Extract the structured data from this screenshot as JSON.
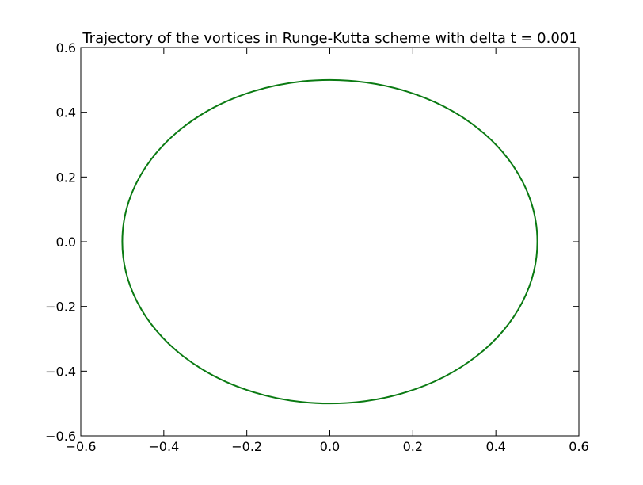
{
  "chart_data": {
    "type": "line",
    "title": "Trajectory of the vortices in Runge-Kutta scheme with delta t = 0.001",
    "xlabel": "",
    "ylabel": "",
    "xlim": [
      -0.6,
      0.6
    ],
    "ylim": [
      -0.6,
      0.6
    ],
    "xticks": [
      -0.6,
      -0.4,
      -0.2,
      0.0,
      0.2,
      0.4,
      0.6
    ],
    "yticks": [
      -0.6,
      -0.4,
      -0.2,
      0.0,
      0.2,
      0.4,
      0.6
    ],
    "xtick_labels": [
      "−0.6",
      "−0.4",
      "−0.2",
      "0.0",
      "0.2",
      "0.4",
      "0.6"
    ],
    "ytick_labels": [
      "−0.6",
      "−0.4",
      "−0.2",
      "0.0",
      "0.2",
      "0.4",
      "0.6"
    ],
    "grid": false,
    "series": [
      {
        "color": "#0a7a12",
        "shape": "circle",
        "center": [
          0.0,
          0.0
        ],
        "radius": 0.5,
        "x": [
          0.5,
          0.433,
          0.25,
          0.0,
          -0.25,
          -0.433,
          -0.5,
          -0.433,
          -0.25,
          0.0,
          0.25,
          0.433,
          0.5
        ],
        "y": [
          0.0,
          0.25,
          0.433,
          0.5,
          0.433,
          0.25,
          0.0,
          -0.25,
          -0.433,
          -0.5,
          -0.433,
          -0.25,
          0.0
        ]
      }
    ]
  }
}
